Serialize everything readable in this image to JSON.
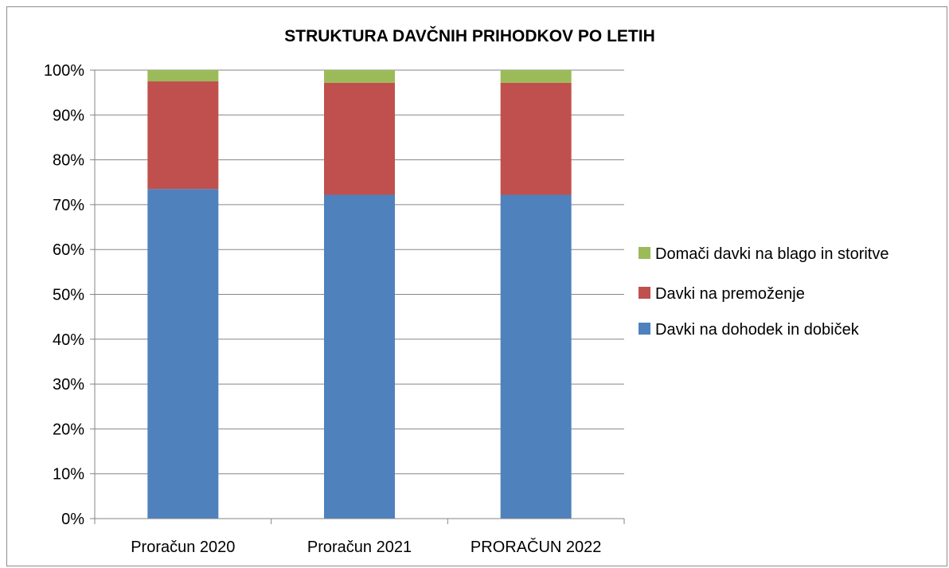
{
  "chart_data": {
    "type": "bar",
    "stacked": true,
    "percent": true,
    "title": "STRUKTURA DAVČNIH PRIHODKOV PO LETIH",
    "categories": [
      "Proračun 2020",
      "Proračun 2021",
      "PRORAČUN 2022"
    ],
    "series": [
      {
        "name": "Davki na dohodek in dobiček",
        "color": "#4f81bd",
        "values": [
          73.5,
          72.2,
          72.2
        ]
      },
      {
        "name": "Davki na premoženje",
        "color": "#c0504d",
        "values": [
          24.0,
          25.0,
          25.0
        ]
      },
      {
        "name": "Domači davki na blago in storitve",
        "color": "#9bbb59",
        "values": [
          2.5,
          2.8,
          2.8
        ]
      }
    ],
    "yticks": [
      "0%",
      "10%",
      "20%",
      "30%",
      "40%",
      "50%",
      "60%",
      "70%",
      "80%",
      "90%",
      "100%"
    ],
    "ylim": [
      0,
      100
    ],
    "grid": true,
    "legend": "right"
  }
}
